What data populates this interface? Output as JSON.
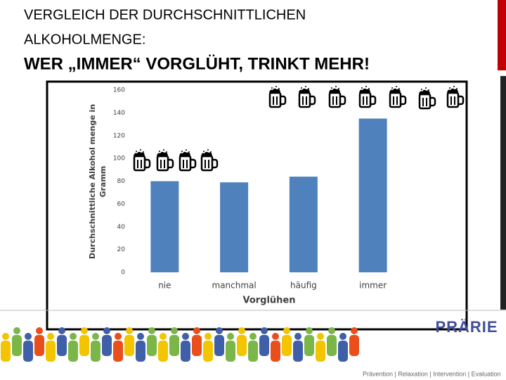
{
  "header": {
    "line1": "VERGLEICH DER DURCHSCHNITTLICHEN",
    "line2": "ALKOHOLMENGE:",
    "subtitle": "WER „IMMER“ VORGLÜHT, TRINKT MEHR!"
  },
  "chart_data": {
    "type": "bar",
    "categories": [
      "nie",
      "manchmal",
      "häufig",
      "immer"
    ],
    "values": [
      80,
      79,
      84,
      135
    ],
    "color": "#4f81bd",
    "xlabel": "Vorglühen",
    "ylabel": [
      "Durchschnittliche  Alkohol menge in",
      "Gramm"
    ],
    "ylim": [
      0,
      160
    ],
    "yticks": [
      0,
      20,
      40,
      60,
      80,
      100,
      120,
      140,
      160
    ],
    "grid": false
  },
  "footer": {
    "logo": "PRÄRIE",
    "tagline": "Prävention | Relaxation | Intervention | Evaluation"
  }
}
